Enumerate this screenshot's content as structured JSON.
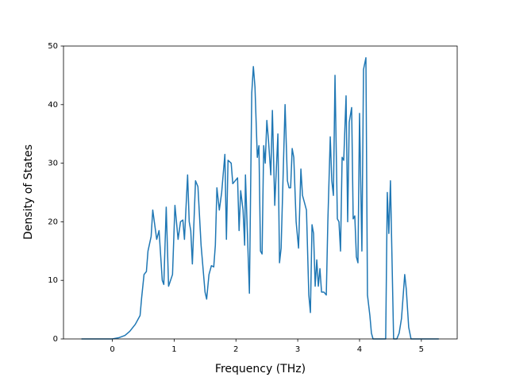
{
  "chart_data": {
    "type": "line",
    "x_label": "Frequency (THz)",
    "y_label": "Density of States",
    "color": "#1f77b4",
    "xlim": [
      -0.79,
      5.58
    ],
    "ylim": [
      0,
      50
    ],
    "xticks": [
      0,
      1,
      2,
      3,
      4,
      5
    ],
    "yticks": [
      0,
      10,
      20,
      30,
      40,
      50
    ],
    "grid": false,
    "x": [
      -0.5,
      0,
      0.103,
      0.205,
      0.282,
      0.372,
      0.449,
      0.474,
      0.513,
      0.551,
      0.577,
      0.628,
      0.654,
      0.718,
      0.756,
      0.808,
      0.833,
      0.872,
      0.91,
      0.974,
      1.013,
      1.064,
      1.103,
      1.141,
      1.167,
      1.218,
      1.244,
      1.269,
      1.295,
      1.346,
      1.385,
      1.436,
      1.5,
      1.526,
      1.564,
      1.603,
      1.641,
      1.667,
      1.692,
      1.731,
      1.769,
      1.821,
      1.846,
      1.872,
      1.923,
      1.949,
      2.026,
      2.051,
      2.077,
      2.115,
      2.141,
      2.154,
      2.218,
      2.256,
      2.282,
      2.308,
      2.346,
      2.372,
      2.397,
      2.423,
      2.449,
      2.474,
      2.5,
      2.526,
      2.564,
      2.59,
      2.628,
      2.679,
      2.705,
      2.731,
      2.795,
      2.833,
      2.859,
      2.885,
      2.91,
      2.936,
      2.974,
      3.013,
      3.051,
      3.077,
      3.103,
      3.141,
      3.179,
      3.205,
      3.231,
      3.256,
      3.282,
      3.308,
      3.333,
      3.359,
      3.385,
      3.423,
      3.462,
      3.487,
      3.526,
      3.551,
      3.577,
      3.603,
      3.641,
      3.667,
      3.692,
      3.718,
      3.744,
      3.782,
      3.808,
      3.833,
      3.872,
      3.897,
      3.923,
      3.949,
      3.974,
      4.0,
      4.038,
      4.064,
      4.103,
      4.128,
      4.167,
      4.192,
      4.218,
      4.423,
      4.449,
      4.474,
      4.5,
      4.551,
      4.603,
      4.641,
      4.679,
      4.731,
      4.756,
      4.795,
      4.833,
      5.282
    ],
    "values": [
      0,
      0,
      0.2,
      0.6,
      1.3,
      2.5,
      4,
      7,
      11,
      11.5,
      15,
      17.5,
      22,
      17,
      18.5,
      10,
      9.3,
      22.5,
      9,
      11,
      22.8,
      17,
      20,
      20.3,
      17,
      28,
      20,
      18.5,
      12.8,
      27,
      26,
      16,
      8,
      6.8,
      11,
      12.5,
      12.3,
      16,
      25.8,
      22,
      25,
      31.5,
      17,
      30.5,
      30,
      26.5,
      27.5,
      18.5,
      25.3,
      22,
      16,
      28,
      7.8,
      42,
      46.5,
      43,
      31,
      33,
      15,
      14.5,
      33,
      30,
      37.3,
      34,
      28,
      39,
      22.8,
      35,
      13,
      15.5,
      40,
      27,
      25.8,
      25.8,
      32.5,
      31,
      20,
      15.5,
      29,
      24.5,
      23.5,
      22,
      7.5,
      4.5,
      19.5,
      18,
      9,
      13.5,
      9,
      12,
      8,
      8,
      7.5,
      20,
      34.5,
      27,
      24.5,
      45,
      20.5,
      20,
      15,
      31,
      30.5,
      41.5,
      20,
      37,
      39.5,
      20.5,
      21,
      14,
      13,
      38.5,
      15,
      46,
      48,
      7.5,
      4,
      1,
      0,
      0,
      25,
      18,
      27,
      0,
      0,
      1,
      3.5,
      11,
      8.5,
      2,
      0,
      0
    ]
  }
}
